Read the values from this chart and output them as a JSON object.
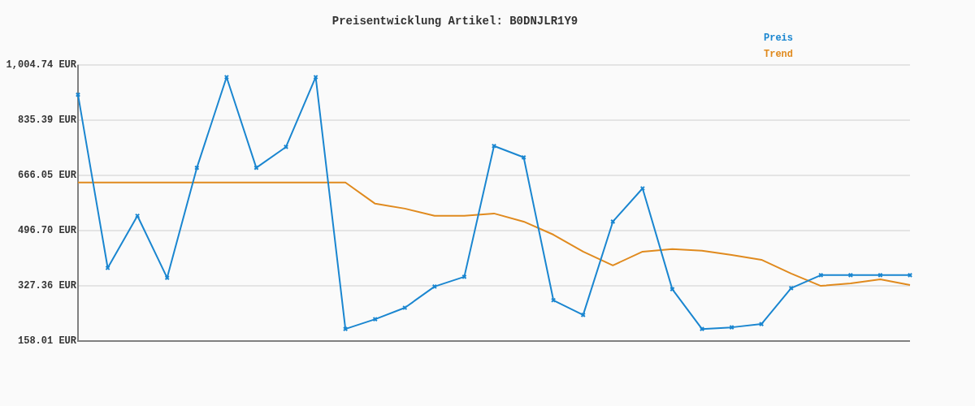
{
  "chart_data": {
    "type": "line",
    "title": "Preisentwicklung Artikel: B0DNJLR1Y9",
    "categories": [
      null,
      null,
      null,
      null,
      null,
      null,
      null,
      null,
      null,
      null,
      null,
      null,
      null,
      null,
      null,
      null,
      null,
      null,
      null,
      null,
      null,
      null,
      null,
      null,
      null,
      null,
      null,
      null,
      null
    ],
    "series": [
      {
        "name": "Preis",
        "color": "#1a86d0",
        "marker": "cross",
        "values": [
          913,
          382,
          542,
          352,
          689,
          967,
          689,
          753,
          967,
          195,
          225,
          260,
          325,
          355,
          756,
          721,
          283,
          238,
          524,
          626,
          317,
          195,
          200,
          210,
          320,
          360,
          360,
          360,
          360
        ]
      },
      {
        "name": "Trend",
        "color": "#e08a1e",
        "marker": "none",
        "values": [
          644,
          644,
          644,
          644,
          644,
          644,
          644,
          644,
          644,
          644,
          579,
          564,
          542,
          542,
          549,
          524,
          484,
          432,
          390,
          432,
          440,
          435,
          422,
          407,
          365,
          327,
          335,
          347,
          330
        ]
      }
    ],
    "ylim": [
      158.01,
      1004.74
    ],
    "yticks": [
      {
        "value": 158.01,
        "label": "158.01 EUR"
      },
      {
        "value": 327.36,
        "label": "327.36 EUR"
      },
      {
        "value": 496.7,
        "label": "496.70 EUR"
      },
      {
        "value": 666.05,
        "label": "666.05 EUR"
      },
      {
        "value": 835.39,
        "label": "835.39 EUR"
      },
      {
        "value": 1004.74,
        "label": "1,004.74 EUR"
      }
    ],
    "grid": "y",
    "legend": "top right",
    "line_style": "solid"
  }
}
